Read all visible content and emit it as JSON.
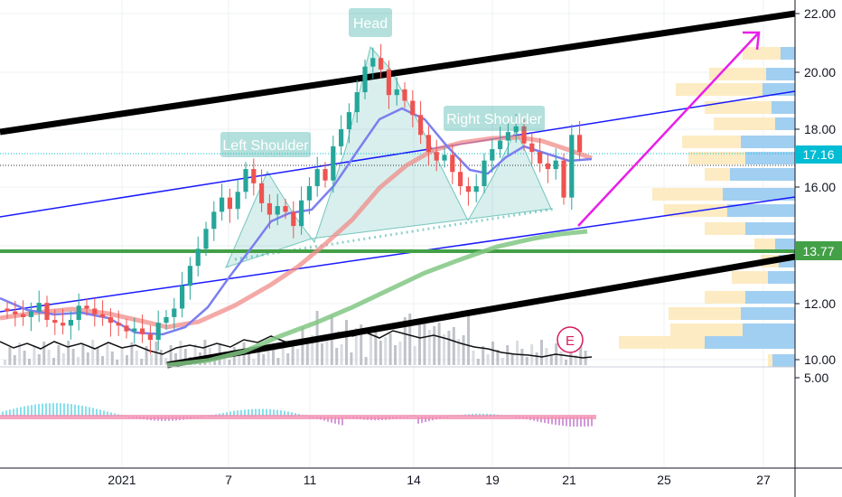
{
  "chart_data": {
    "type": "candlestick",
    "price_axis": {
      "ticks": [
        "22.00",
        "20.00",
        "18.00",
        "16.00",
        "12.00",
        "10.00"
      ],
      "ylim": [
        9.9,
        22.5
      ]
    },
    "price_labels": [
      {
        "text": "17.16",
        "value": 17.16,
        "color": "#00bcd4"
      },
      {
        "text": "13.77",
        "value": 13.77,
        "color": "#43a047"
      }
    ],
    "osc_axis": {
      "ticks": [
        "5.00"
      ]
    },
    "time_axis": {
      "labels": [
        "2021",
        "7",
        "11",
        "14",
        "19",
        "21",
        "25",
        "27"
      ]
    },
    "annotations": [
      "Head",
      "Left Shoulder",
      "Right Shoulder"
    ],
    "earnings_marker": "E",
    "closes": [
      11.6,
      11.5,
      11.4,
      11.6,
      11.9,
      11.3,
      11.2,
      11.1,
      11.3,
      11.8,
      11.7,
      11.5,
      11.4,
      11.2,
      11.1,
      10.9,
      11.0,
      10.8,
      10.6,
      11.2,
      11.4,
      11.7,
      12.5,
      13.2,
      13.8,
      14.5,
      15.1,
      15.6,
      15.2,
      15.8,
      16.6,
      16.1,
      15.4,
      15.0,
      15.3,
      15.1,
      14.6,
      15.5,
      16.0,
      16.6,
      16.2,
      17.4,
      18.0,
      18.6,
      19.3,
      20.2,
      20.5,
      20.1,
      19.2,
      19.4,
      19.0,
      18.5,
      17.8,
      17.2,
      16.9,
      17.1,
      16.5,
      16.0,
      15.8,
      16.0,
      16.9,
      17.3,
      17.6,
      17.9,
      18.1,
      17.5,
      17.2,
      16.8,
      16.6,
      16.9,
      15.6,
      17.8,
      17.2
    ]
  },
  "colors": {
    "candle_up": "#26a69a",
    "candle_down": "#ef5350",
    "ma_fast": "#7b7ff0",
    "ma_mid": "#f08c88",
    "ma_slow": "#81c784",
    "channel_thick": "#000000",
    "channel_thin": "#1a1aff",
    "support": "#43a047",
    "arrow": "#e91ee9",
    "pattern": "#26a69a"
  }
}
